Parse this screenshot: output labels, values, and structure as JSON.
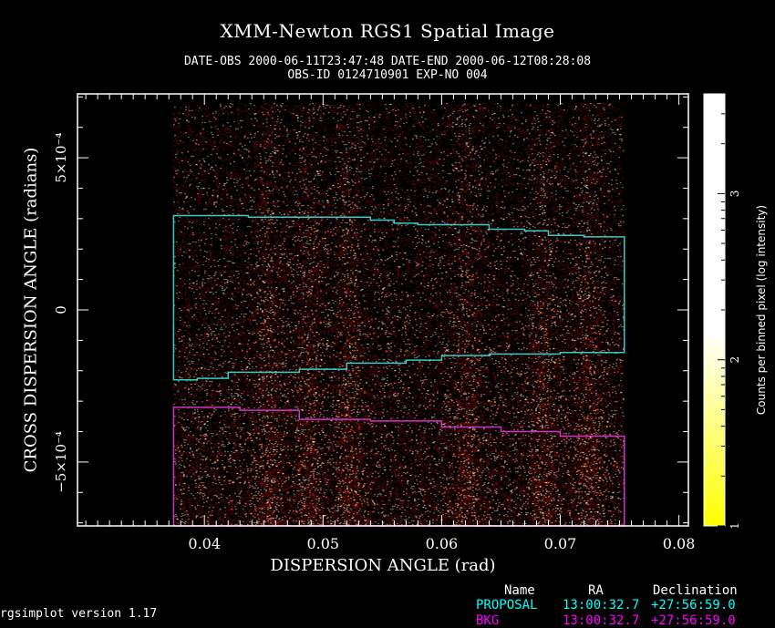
{
  "header": {
    "title": "XMM-Newton  RGS1 Spatial Image",
    "subtitle_line1": "DATE-OBS 2000-06-11T23:47:48   DATE-END 2000-06-12T08:28:08",
    "subtitle_line2": "OBS-ID 0124710901 EXP-NO 004"
  },
  "chart_data": {
    "type": "heatmap",
    "title": "XMM-Newton  RGS1 Spatial Image",
    "xlabel": "DISPERSION ANGLE (rad)",
    "ylabel": "CROSS DISPERSION ANGLE (radians)",
    "xlim": [
      0.0293,
      0.0808
    ],
    "ylim": [
      -0.00071,
      0.00071
    ],
    "x_ticks": [
      {
        "value": 0.04,
        "label": "0.04"
      },
      {
        "value": 0.05,
        "label": "0.05"
      },
      {
        "value": 0.06,
        "label": "0.06"
      },
      {
        "value": 0.07,
        "label": "0.07"
      },
      {
        "value": 0.08,
        "label": "0.08"
      }
    ],
    "y_ticks": [
      {
        "value": 0.0005,
        "label": "5×10⁻⁴"
      },
      {
        "value": 0,
        "label": "0"
      },
      {
        "value": -0.0005,
        "label": "−5×10⁻⁴"
      }
    ],
    "image_extent": {
      "x": [
        0.0374,
        0.0754
      ],
      "y": [
        -0.00071,
        0.00068
      ]
    },
    "colorbar": {
      "label": "Counts per binned pixel (log intensity)",
      "range": [
        1,
        3.6
      ],
      "ticks": [
        1,
        2,
        3
      ],
      "colors": [
        "#ffff00",
        "#ffffff"
      ]
    },
    "regions": [
      {
        "name": "PROPOSAL",
        "color": "#33cccc",
        "upper": [
          [
            0.0374,
            0.00031
          ],
          [
            0.0433,
            0.00031
          ],
          [
            0.0437,
            0.000305
          ],
          [
            0.054,
            0.000295
          ],
          [
            0.056,
            0.000285
          ],
          [
            0.058,
            0.00028
          ],
          [
            0.064,
            0.000265
          ],
          [
            0.067,
            0.00026
          ],
          [
            0.069,
            0.000245
          ],
          [
            0.072,
            0.00024
          ],
          [
            0.0754,
            0.000235
          ]
        ],
        "lower": [
          [
            0.0374,
            -0.00023
          ],
          [
            0.0394,
            -0.00023
          ],
          [
            0.042,
            -0.000225
          ],
          [
            0.048,
            -0.000205
          ],
          [
            0.052,
            -0.000195
          ],
          [
            0.057,
            -0.000175
          ],
          [
            0.06,
            -0.000165
          ],
          [
            0.064,
            -0.00015
          ],
          [
            0.07,
            -0.000145
          ],
          [
            0.0754,
            -0.00014
          ]
        ]
      },
      {
        "name": "BKG",
        "color": "#cc33cc",
        "upper": [
          [
            0.0374,
            -0.00032
          ],
          [
            0.043,
            -0.00033
          ],
          [
            0.048,
            -0.00036
          ],
          [
            0.054,
            -0.000365
          ],
          [
            0.06,
            -0.000385
          ],
          [
            0.065,
            -0.0004
          ],
          [
            0.07,
            -0.000415
          ],
          [
            0.0754,
            -0.00042
          ]
        ],
        "lower": [
          [
            0.0374,
            -0.00071
          ],
          [
            0.0754,
            -0.00071
          ]
        ]
      }
    ]
  },
  "source_table": {
    "headers": [
      "Name",
      "RA",
      "Declination"
    ],
    "rows": [
      {
        "name": "PROPOSAL",
        "ra": "13:00:32.7",
        "dec": "+27:56:59.0",
        "color": "#00ffff"
      },
      {
        "name": "BKG",
        "ra": "13:00:32.7",
        "dec": "+27:56:59.0",
        "color": "#ff00ff"
      }
    ]
  },
  "footer": {
    "version": "rgsimplot version 1.17"
  }
}
